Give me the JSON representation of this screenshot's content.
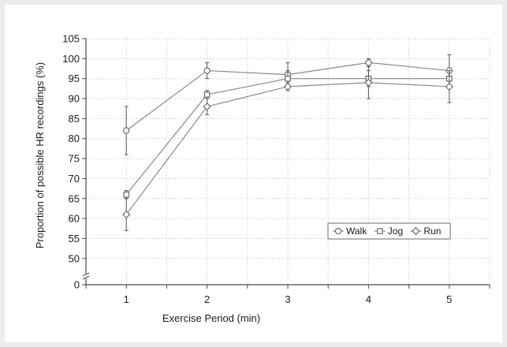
{
  "chart_data": {
    "type": "line",
    "xlabel": "Exercise Period (min)",
    "ylabel": "Proportion of possible HR recordings (%)",
    "x": [
      1,
      2,
      3,
      4,
      5
    ],
    "x_ticks": [
      "1",
      "2",
      "3",
      "4",
      "5"
    ],
    "xlim": [
      0.5,
      5.5
    ],
    "y_ticks": [
      "0",
      "50",
      "55",
      "60",
      "65",
      "70",
      "75",
      "80",
      "85",
      "90",
      "95",
      "100",
      "105"
    ],
    "ylim": [
      47,
      105
    ],
    "y_axis_break": true,
    "grid": true,
    "legend_position": "bottom-right",
    "series": [
      {
        "name": "Walk",
        "marker": "circle",
        "values": [
          82,
          97,
          96,
          99,
          97
        ],
        "errors": [
          6,
          2,
          3,
          1,
          4
        ]
      },
      {
        "name": "Jog",
        "marker": "square",
        "values": [
          66,
          91,
          95,
          95,
          95
        ],
        "errors": [
          1,
          1,
          2,
          2,
          2
        ]
      },
      {
        "name": "Run",
        "marker": "diamond",
        "values": [
          61,
          88,
          93,
          94,
          93
        ],
        "errors": [
          4,
          2,
          1,
          4,
          4
        ]
      }
    ],
    "colors": {
      "line": "#8a8a8a",
      "marker_fill": "#ffffff",
      "grid": "#d6d6d6",
      "axis": "#4a4a4a"
    }
  }
}
